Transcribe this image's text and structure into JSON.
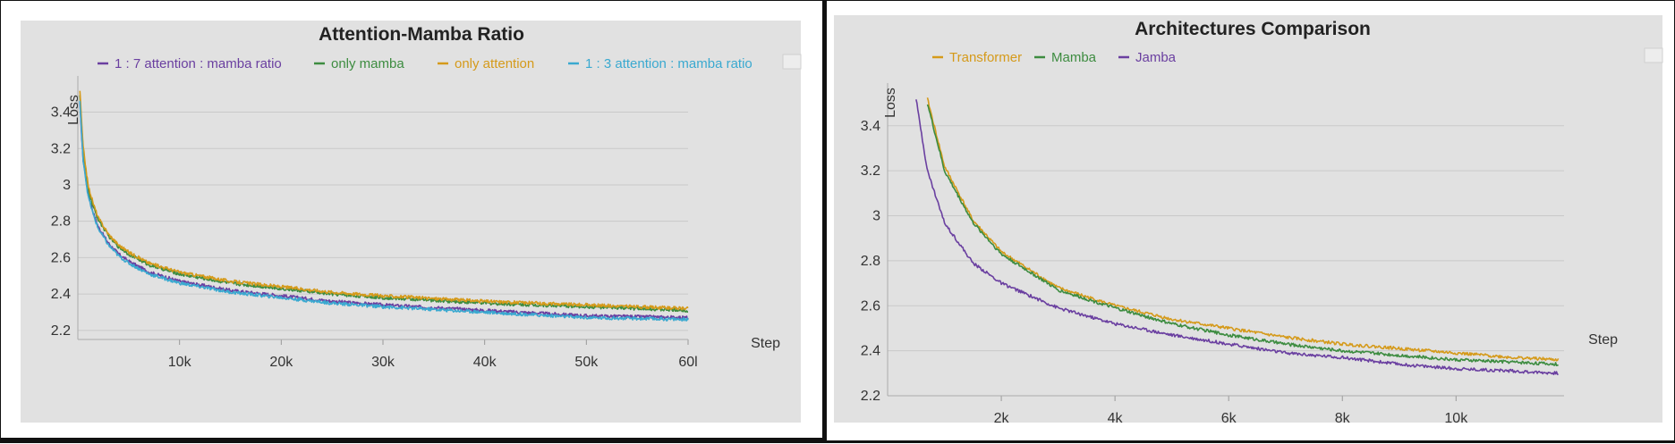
{
  "chart_data": [
    {
      "type": "line",
      "title": "Attention-Mamba Ratio",
      "xlabel": "Step",
      "ylabel": "Loss",
      "xlim": [
        0,
        60000
      ],
      "ylim": [
        2.15,
        3.55
      ],
      "x_ticks": [
        {
          "value": 10000,
          "label": "10k"
        },
        {
          "value": 20000,
          "label": "20k"
        },
        {
          "value": 30000,
          "label": "30k"
        },
        {
          "value": 40000,
          "label": "40k"
        },
        {
          "value": 50000,
          "label": "50k"
        },
        {
          "value": 60000,
          "label": "60l"
        }
      ],
      "y_ticks": [
        {
          "value": 2.2,
          "label": "2.2"
        },
        {
          "value": 2.4,
          "label": "2.4"
        },
        {
          "value": 2.6,
          "label": "2.6"
        },
        {
          "value": 2.8,
          "label": "2.8"
        },
        {
          "value": 3.0,
          "label": "3"
        },
        {
          "value": 3.2,
          "label": "3.2"
        },
        {
          "value": 3.4,
          "label": "3.4"
        }
      ],
      "grid": true,
      "legend_position": "top",
      "x": [
        200,
        500,
        1000,
        1500,
        2000,
        3000,
        4000,
        5000,
        7000,
        10000,
        15000,
        20000,
        25000,
        30000,
        40000,
        50000,
        60000
      ],
      "series": [
        {
          "name": "1 : 7 attention : mamba ratio",
          "color": "#6a3fa0",
          "values": [
            3.45,
            3.15,
            2.95,
            2.85,
            2.77,
            2.68,
            2.62,
            2.58,
            2.52,
            2.47,
            2.42,
            2.39,
            2.36,
            2.34,
            2.31,
            2.28,
            2.27
          ]
        },
        {
          "name": "only mamba",
          "color": "#3d8c40",
          "values": [
            3.5,
            3.2,
            2.98,
            2.88,
            2.81,
            2.72,
            2.66,
            2.62,
            2.56,
            2.51,
            2.46,
            2.43,
            2.4,
            2.38,
            2.35,
            2.33,
            2.31
          ]
        },
        {
          "name": "only attention",
          "color": "#d59a1a",
          "values": [
            3.52,
            3.22,
            3.0,
            2.9,
            2.82,
            2.73,
            2.67,
            2.63,
            2.57,
            2.52,
            2.47,
            2.44,
            2.41,
            2.39,
            2.36,
            2.34,
            2.32
          ]
        },
        {
          "name": "1 : 3 attention : mamba ratio",
          "color": "#3aa9d0",
          "values": [
            3.46,
            3.15,
            2.94,
            2.84,
            2.76,
            2.67,
            2.61,
            2.57,
            2.51,
            2.46,
            2.41,
            2.38,
            2.35,
            2.33,
            2.3,
            2.27,
            2.26
          ]
        }
      ]
    },
    {
      "type": "line",
      "title": "Architectures Comparison",
      "xlabel": "Step",
      "ylabel": "Loss",
      "xlim": [
        0,
        11900
      ],
      "ylim": [
        2.2,
        3.55
      ],
      "x_ticks": [
        {
          "value": 2000,
          "label": "2k"
        },
        {
          "value": 4000,
          "label": "4k"
        },
        {
          "value": 6000,
          "label": "6k"
        },
        {
          "value": 8000,
          "label": "8k"
        },
        {
          "value": 10000,
          "label": "10k"
        }
      ],
      "y_ticks": [
        {
          "value": 2.2,
          "label": "2.2"
        },
        {
          "value": 2.4,
          "label": "2.4"
        },
        {
          "value": 2.6,
          "label": "2.6"
        },
        {
          "value": 2.8,
          "label": "2.8"
        },
        {
          "value": 3.0,
          "label": "3"
        },
        {
          "value": 3.2,
          "label": "3.2"
        },
        {
          "value": 3.4,
          "label": "3.4"
        }
      ],
      "grid": true,
      "legend_position": "top",
      "series": [
        {
          "name": "Transformer",
          "color": "#d59a1a",
          "x": [
            700,
            1000,
            1500,
            2000,
            3000,
            4000,
            5000,
            6000,
            7000,
            8000,
            9000,
            10000,
            11000,
            11800
          ],
          "values": [
            3.52,
            3.22,
            2.98,
            2.84,
            2.68,
            2.6,
            2.54,
            2.5,
            2.46,
            2.43,
            2.41,
            2.39,
            2.37,
            2.36
          ]
        },
        {
          "name": "Mamba",
          "color": "#3d8c40",
          "x": [
            700,
            1000,
            1500,
            2000,
            3000,
            4000,
            5000,
            6000,
            7000,
            8000,
            9000,
            10000,
            11000,
            11800
          ],
          "values": [
            3.5,
            3.2,
            2.97,
            2.83,
            2.67,
            2.59,
            2.52,
            2.47,
            2.43,
            2.4,
            2.38,
            2.36,
            2.35,
            2.34
          ]
        },
        {
          "name": "Jamba",
          "color": "#6a3fa0",
          "x": [
            500,
            700,
            1000,
            1500,
            2000,
            3000,
            4000,
            5000,
            6000,
            7000,
            8000,
            9000,
            10000,
            11000,
            11800
          ],
          "values": [
            3.52,
            3.2,
            2.97,
            2.79,
            2.7,
            2.59,
            2.52,
            2.47,
            2.43,
            2.39,
            2.37,
            2.34,
            2.32,
            2.31,
            2.3
          ]
        }
      ]
    }
  ]
}
